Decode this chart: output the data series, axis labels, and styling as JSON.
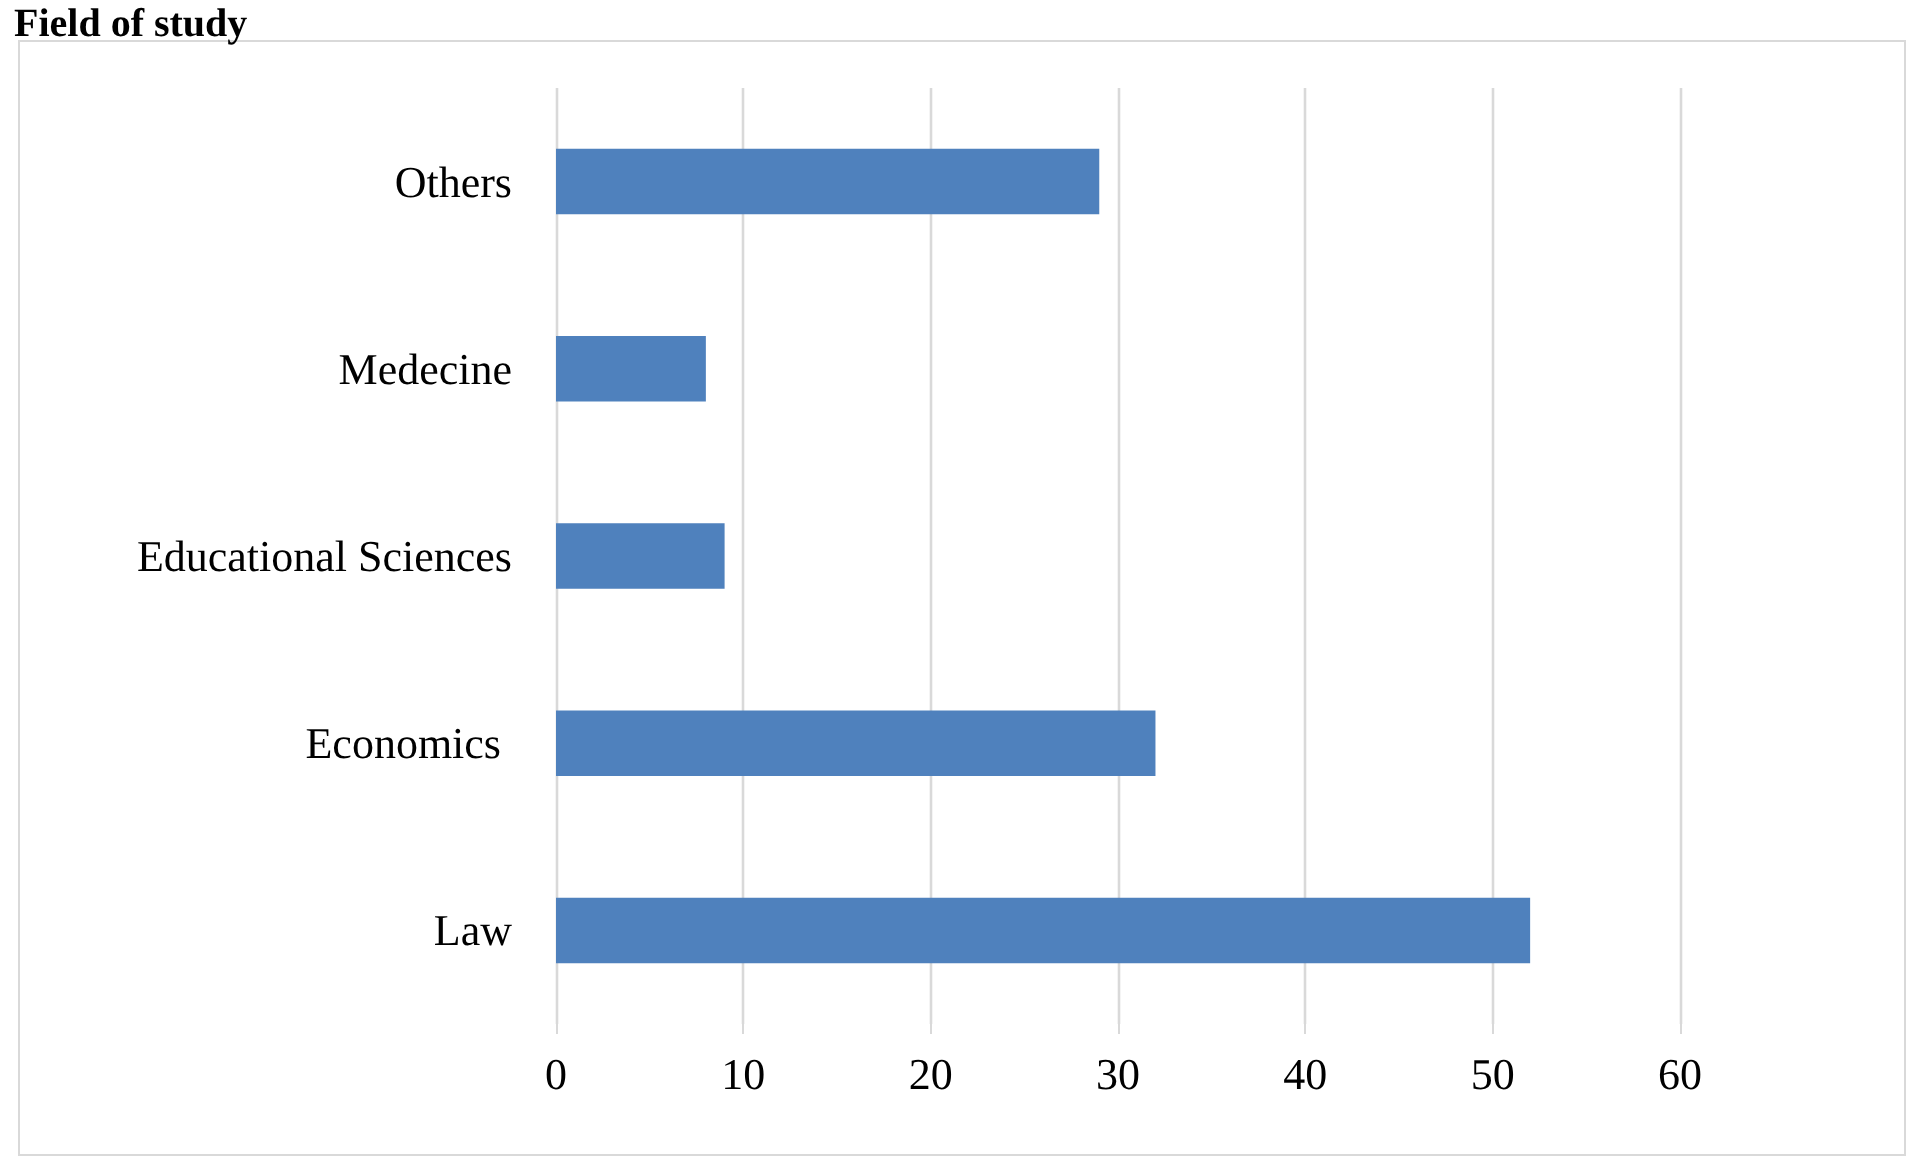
{
  "chart_data": {
    "type": "bar",
    "orientation": "horizontal",
    "title": "Field of study",
    "categories": [
      "Others",
      "Medecine",
      "Educational Sciences",
      "Economics ",
      "Law"
    ],
    "values": [
      29,
      8,
      9,
      32,
      52
    ],
    "color": "#4f81bd",
    "xlim": [
      0,
      60
    ],
    "xticks": [
      0,
      10,
      20,
      30,
      40,
      50,
      60
    ],
    "grid": "x"
  }
}
